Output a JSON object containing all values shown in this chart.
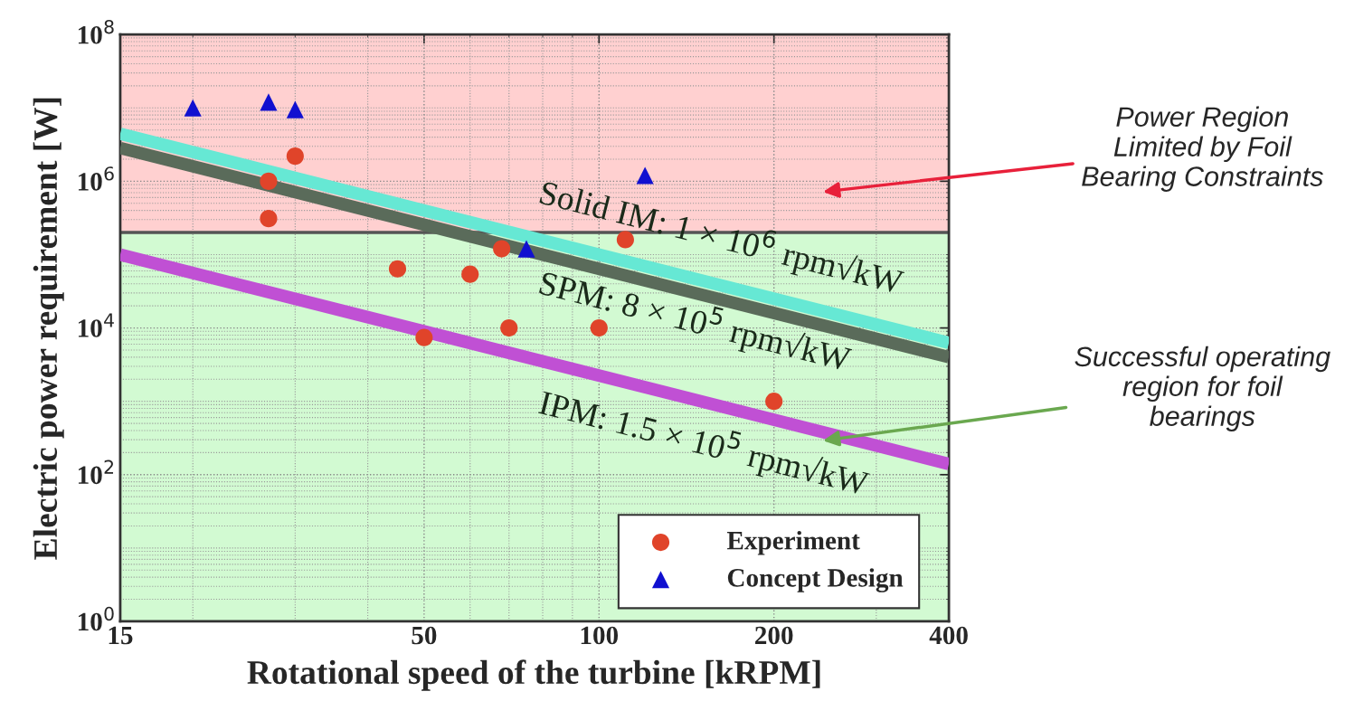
{
  "chart_data": {
    "type": "scatter",
    "xlabel": "Rotational speed of the turbine [kRPM]",
    "ylabel": "Electric power requirement [W]",
    "log": "xy",
    "xlim": [
      15,
      400
    ],
    "xticks": [
      15,
      50,
      100,
      200,
      400
    ],
    "ylim": [
      1,
      100000000
    ],
    "yticks": [
      {
        "value": 1,
        "label": "10$^{0}$"
      },
      {
        "value": 100,
        "label": "10$^{2}$"
      },
      {
        "value": 10000,
        "label": "10$^{4}$"
      },
      {
        "value": 1000000,
        "label": "10$^{6}$"
      },
      {
        "value": 100000000,
        "label": "10$^{8}$"
      }
    ],
    "grid": true,
    "legend": "lower right",
    "series": [
      {
        "type": "line",
        "color": "#66e8d4",
        "x": [
          15,
          400
        ],
        "values": [
          4440000,
          6250
        ]
      },
      {
        "type": "line",
        "color": "#5a6b5a",
        "x": [
          15,
          400
        ],
        "values": [
          2840000,
          4000
        ]
      },
      {
        "type": "line",
        "color": "#c050d4",
        "x": [
          15,
          400
        ],
        "values": [
          100000,
          140
        ]
      },
      {
        "name": "Experiment",
        "marker": "circle",
        "color": "#e0442a",
        "x": [
          30,
          27,
          27,
          68,
          111,
          45,
          60,
          70,
          50,
          100,
          200
        ],
        "values": [
          2200000,
          1000000,
          310000,
          120000,
          160000,
          64000,
          54000,
          10000,
          7400,
          10000,
          1000
        ]
      },
      {
        "name": "Concept Design",
        "marker": "triangle",
        "color": "#1010d0",
        "x": [
          20,
          27,
          30,
          120,
          75
        ],
        "values": [
          10000000,
          12000000,
          9500000,
          1200000,
          120000
        ]
      }
    ],
    "bands": [
      {
        "axis": "y",
        "from": 200000,
        "to": 100000000,
        "color": "#ffd0d0"
      },
      {
        "axis": "y",
        "from": 1,
        "to": 200000,
        "color": "#d2fad2"
      }
    ],
    "ref_lines": [
      {
        "axis": "y",
        "value": 200000,
        "color": "#555555",
        "line_style": "solid"
      }
    ],
    "annotations": [
      "Solid IM: 1 × 10$^{6}$ rpm√kW",
      "SPM: 8 × 10$^{5}$ rpm√kW",
      "IPM: 1.5 × 10$^{5}$ rpm√kW",
      "Power Region\nLimited by Foil\nBearing Constraints",
      "Successful operating\nregion for foil\nbearings"
    ]
  }
}
